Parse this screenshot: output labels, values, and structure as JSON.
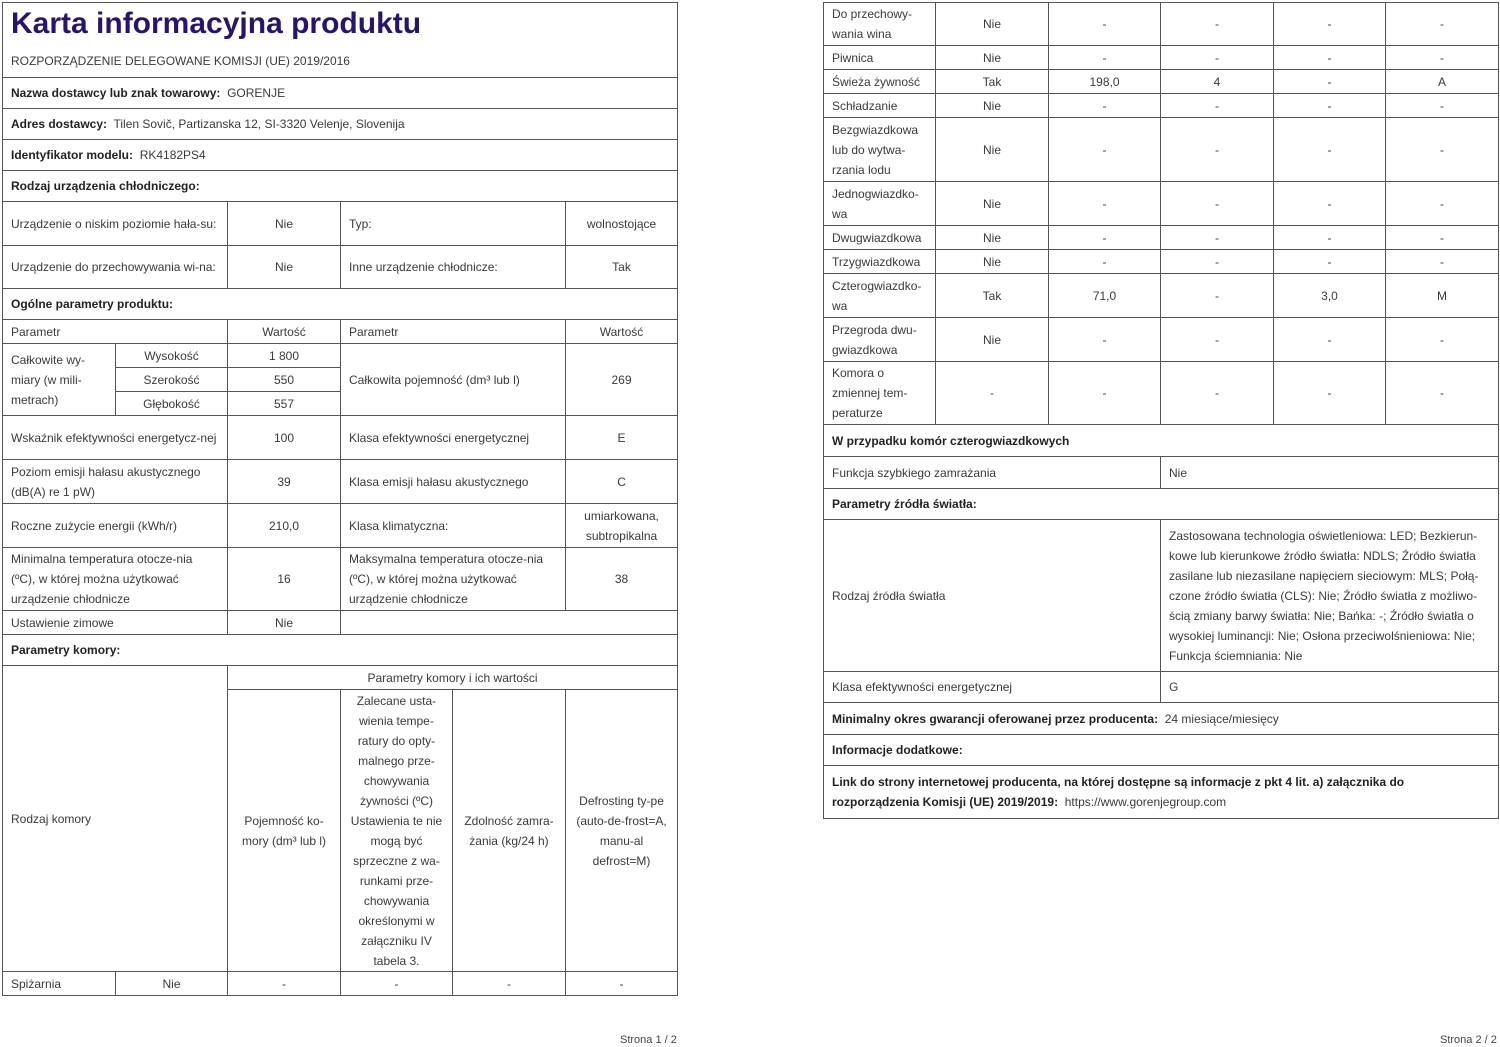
{
  "page1": {
    "title": "Karta informacyjna produktu",
    "regulation": "ROZPORZĄDZENIE DELEGOWANE KOMISJI (UE) 2019/2016",
    "supplier_label": "Nazwa dostawcy lub znak towarowy:",
    "supplier_value": "GORENJE",
    "address_label": "Adres dostawcy:",
    "address_value": "Tilen Sovič, Partizanska 12, SI-3320 Velenje, Slovenija",
    "model_label": "Identyfikator modelu:",
    "model_value": "RK4182PS4",
    "type_heading": "Rodzaj urządzenia chłodniczego:",
    "low_noise_label": "Urządzenie o niskim poziomie hała-su:",
    "low_noise_value": "Nie",
    "typ_label": "Typ:",
    "typ_value": "wolnostojące",
    "wine_label": "Urządzenie do przechowywania wi-na:",
    "wine_value": "Nie",
    "other_label": "Inne urządzenie chłodnicze:",
    "other_value": "Tak",
    "general_heading": "Ogólne parametry produktu:",
    "col_param": "Parametr",
    "col_value": "Wartość",
    "dims_label": "Całkowite wy-miary (w mili-metrach)",
    "height_label": "Wysokość",
    "height_value": "1 800",
    "width_label": "Szerokość",
    "width_value": "550",
    "depth_label": "Głębokość",
    "depth_value": "557",
    "capacity_label": "Całkowita pojemność (dm³ lub l)",
    "capacity_value": "269",
    "eei_label": "Wskaźnik efektywności energetycz-nej",
    "eei_value": "100",
    "energy_class_label": "Klasa efektywności energetycznej",
    "energy_class_value": "E",
    "noise_label": "Poziom emisji hałasu akustycznego (dB(A) re 1 pW)",
    "noise_value": "39",
    "noise_class_label": "Klasa emisji hałasu akustycznego",
    "noise_class_value": "C",
    "annual_label": "Roczne zużycie energii (kWh/r)",
    "annual_value": "210,0",
    "climate_label": "Klasa klimatyczna:",
    "climate_value": "umiarkowana, subtropikalna",
    "min_temp_label": "Minimalna temperatura otocze-nia (ºC), w której można użytkować urządzenie chłodnicze",
    "min_temp_value": "16",
    "max_temp_label": "Maksymalna temperatura otocze-nia (ºC), w której można użytkować urządzenie chłodnicze",
    "max_temp_value": "38",
    "winter_label": "Ustawienie zimowe",
    "winter_value": "Nie",
    "compartment_heading": "Parametry komory:",
    "compartment_type_label": "Rodzaj komory",
    "compartment_params_label": "Parametry komory i ich wartości",
    "h_volume": "Pojemność ko-mory (dm³ lub l)",
    "h_temp": "Zalecane usta-wienia tempe-ratury do opty-malnego prze-chowywania żywności (ºC) Ustawienia te nie mogą być sprzeczne z wa-runkami prze-chowywania określonymi w załączniku IV tabela 3.",
    "h_freeze": "Zdolność zamra-żania (kg/24 h)",
    "h_defrost": "Defrosting ty-pe (auto-de-frost=A, manu-al defrost=M)",
    "pantry": [
      "Spiżarnia",
      "Nie",
      "-",
      "-",
      "-",
      "-"
    ],
    "footer": "Strona 1 / 2"
  },
  "page2": {
    "compartments": [
      [
        "Do przechowy-wania wina",
        "Nie",
        "-",
        "-",
        "-",
        "-"
      ],
      [
        "Piwnica",
        "Nie",
        "-",
        "-",
        "-",
        "-"
      ],
      [
        "Świeża żywność",
        "Tak",
        "198,0",
        "4",
        "-",
        "A"
      ],
      [
        "Schładzanie",
        "Nie",
        "-",
        "-",
        "-",
        "-"
      ],
      [
        "Bezgwiazdkowa lub do wytwa-rzania lodu",
        "Nie",
        "-",
        "-",
        "-",
        "-"
      ],
      [
        "Jednogwiazdko-wa",
        "Nie",
        "-",
        "-",
        "-",
        "-"
      ],
      [
        "Dwugwiazdkowa",
        "Nie",
        "-",
        "-",
        "-",
        "-"
      ],
      [
        "Trzygwiazdkowa",
        "Nie",
        "-",
        "-",
        "-",
        "-"
      ],
      [
        "Czterogwiazdko-wa",
        "Tak",
        "71,0",
        "-",
        "3,0",
        "M"
      ],
      [
        "Przegroda dwu-gwiazdkowa",
        "Nie",
        "-",
        "-",
        "-",
        "-"
      ],
      [
        "Komora o zmiennej tem-peraturze",
        "-",
        "-",
        "-",
        "-",
        "-"
      ]
    ],
    "four_star_heading": "W przypadku komór czterogwiazdkowych",
    "fast_freeze_label": "Funkcja szybkiego zamrażania",
    "fast_freeze_value": "Nie",
    "light_heading": "Parametry źródła światła:",
    "light_type_label": "Rodzaj źródła światła",
    "light_type_value": "Zastosowana technologia oświetleniowa: LED; Bezkierun-kowe lub kierunkowe źródło światła: NDLS; Źródło światła zasilane lub niezasilane napięciem sieciowym: MLS; Połą-czone źródło światła (CLS): Nie; Źródło światła z możliwo-ścią zmiany barwy światła: Nie; Bańka: -; Źródło światła o wysokiej luminancji: Nie; Osłona przeciwolśnieniowa: Nie; Funkcja ściemniania: Nie",
    "light_class_label": "Klasa efektywności energetycznej",
    "light_class_value": "G",
    "warranty_label": "Minimalny okres gwarancji oferowanej przez producenta:",
    "warranty_value": "24 miesiące/miesięcy",
    "additional_heading": "Informacje dodatkowe:",
    "link_label": "Link do strony internetowej producenta, na której dostępne są informacje z pkt 4 lit. a) załącznika do rozporządzenia Komisji (UE) 2019/2019:",
    "link_value": "https://www.gorenjegroup.com",
    "footer": "Strona 2 / 2"
  },
  "colors": {
    "title": "#26146e",
    "border": "#555555",
    "text": "#3a3a3a"
  }
}
